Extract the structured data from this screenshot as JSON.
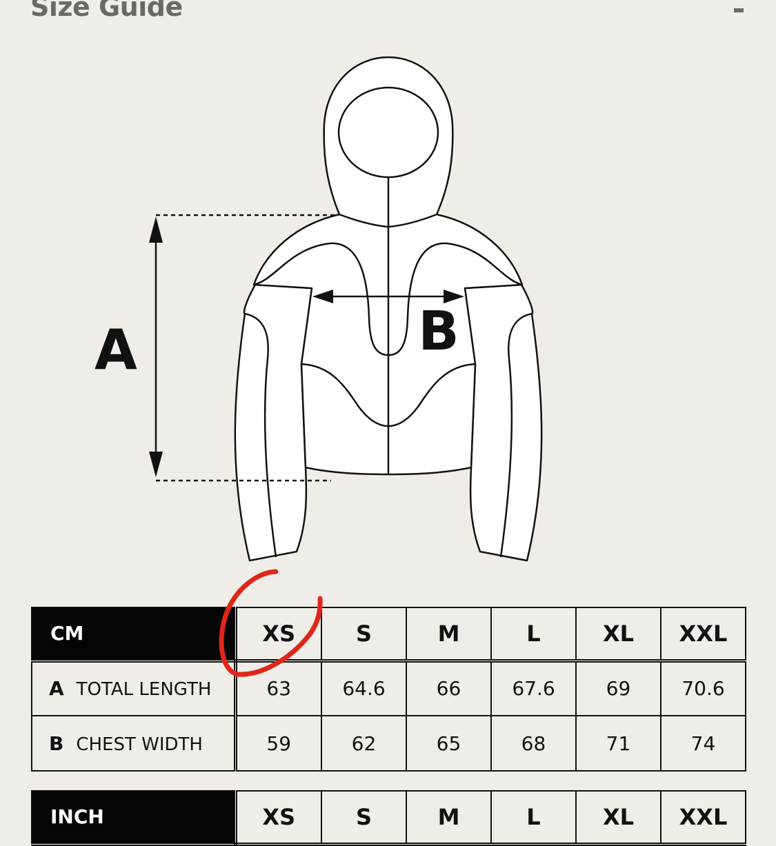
{
  "header": {
    "title": "Size Guide",
    "collapse_icon": "minus-icon"
  },
  "diagram": {
    "label_a": "A",
    "label_b": "B"
  },
  "tables": [
    {
      "unit": "CM",
      "sizes": [
        "XS",
        "S",
        "M",
        "L",
        "XL",
        "XXL"
      ],
      "rows": [
        {
          "key": "A",
          "label": "TOTAL LENGTH",
          "values": [
            "63",
            "64.6",
            "66",
            "67.6",
            "69",
            "70.6"
          ]
        },
        {
          "key": "B",
          "label": "CHEST WIDTH",
          "values": [
            "59",
            "62",
            "65",
            "68",
            "71",
            "74"
          ]
        }
      ]
    },
    {
      "unit": "INCH",
      "sizes": [
        "XS",
        "S",
        "M",
        "L",
        "XL",
        "XXL"
      ]
    }
  ],
  "annotation": {
    "color": "#e0261a",
    "highlighted_size": "XS"
  }
}
